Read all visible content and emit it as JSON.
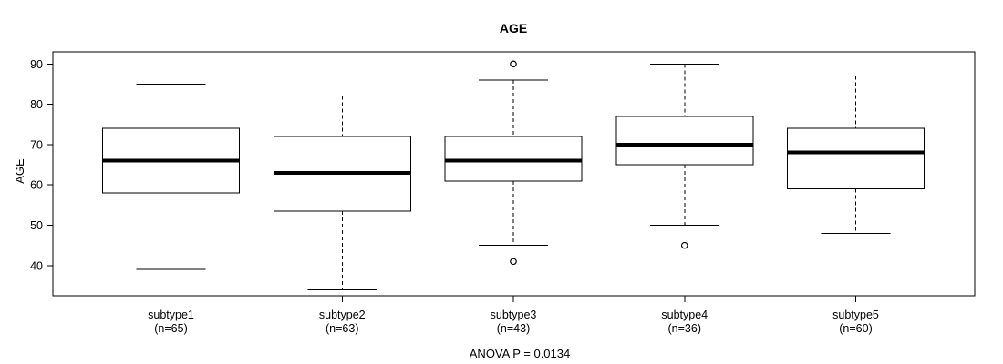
{
  "page": {
    "background": "#ffffff"
  },
  "chart_data": {
    "type": "boxplot",
    "title": "AGE",
    "ylabel": "AGE",
    "xlabel": "",
    "annotation": "ANOVA P = 0.0134",
    "ylim": [
      32.5,
      93
    ],
    "yticks": [
      40,
      50,
      60,
      70,
      80,
      90
    ],
    "grid": false,
    "legend": "none",
    "frame": true,
    "categories": [
      "subtype1",
      "subtype2",
      "subtype3",
      "subtype4",
      "subtype5"
    ],
    "category_sublabels": [
      "(n=65)",
      "(n=63)",
      "(n=43)",
      "(n=36)",
      "(n=60)"
    ],
    "series": [
      {
        "name": "subtype1",
        "n": 65,
        "whisker_low": 39,
        "q1": 58,
        "median": 66,
        "q3": 74,
        "whisker_high": 85,
        "outliers": []
      },
      {
        "name": "subtype2",
        "n": 63,
        "whisker_low": 34,
        "q1": 53.5,
        "median": 63,
        "q3": 72,
        "whisker_high": 82,
        "outliers": []
      },
      {
        "name": "subtype3",
        "n": 43,
        "whisker_low": 45,
        "q1": 61,
        "median": 66,
        "q3": 72,
        "whisker_high": 86,
        "outliers": [
          90,
          41
        ]
      },
      {
        "name": "subtype4",
        "n": 36,
        "whisker_low": 50,
        "q1": 65,
        "median": 70,
        "q3": 77,
        "whisker_high": 90,
        "outliers": [
          45
        ]
      },
      {
        "name": "subtype5",
        "n": 60,
        "whisker_low": 48,
        "q1": 59,
        "median": 68,
        "q3": 74,
        "whisker_high": 87,
        "outliers": []
      }
    ],
    "style": {
      "box_fill": "#ffffff",
      "stroke": "#000000",
      "median_color": "#000000",
      "whisker_style": "dashed"
    }
  }
}
